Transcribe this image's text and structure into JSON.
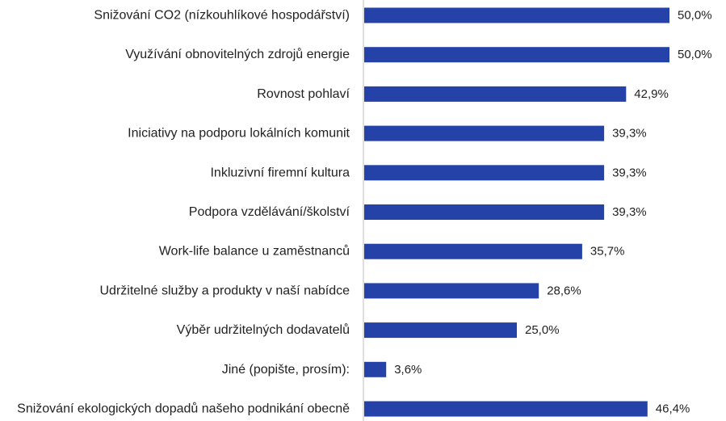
{
  "chart_data": {
    "type": "bar",
    "orientation": "horizontal",
    "categories": [
      "Snižování CO2 (nízkouhlíkové hospodářství)",
      "Využívání obnovitelných zdrojů energie",
      "Rovnost pohlaví",
      "Iniciativy na podporu lokálních komunit",
      "Inkluzivní firemní kultura",
      "Podpora vzdělávání/školství",
      "Work-life balance u zaměstnanců",
      "Udržitelné služby a produkty v naší nabídce",
      "Výběr udržitelných dodavatelů",
      "Jiné (popište, prosím):",
      "Snižování ekologických dopadů našeho podnikání obecně"
    ],
    "values": [
      50.0,
      50.0,
      42.9,
      39.3,
      39.3,
      39.3,
      35.7,
      28.6,
      25.0,
      3.6,
      46.4
    ],
    "value_labels": [
      "50,0%",
      "50,0%",
      "42,9%",
      "39,3%",
      "39,3%",
      "39,3%",
      "35,7%",
      "28,6%",
      "25,0%",
      "3,6%",
      "46,4%"
    ],
    "xlim": [
      0,
      50
    ],
    "grid": false,
    "legend": "none",
    "bar_color": "#2442a8",
    "axis_color": "#bfbfbf",
    "title": "",
    "xlabel": "",
    "ylabel": ""
  }
}
